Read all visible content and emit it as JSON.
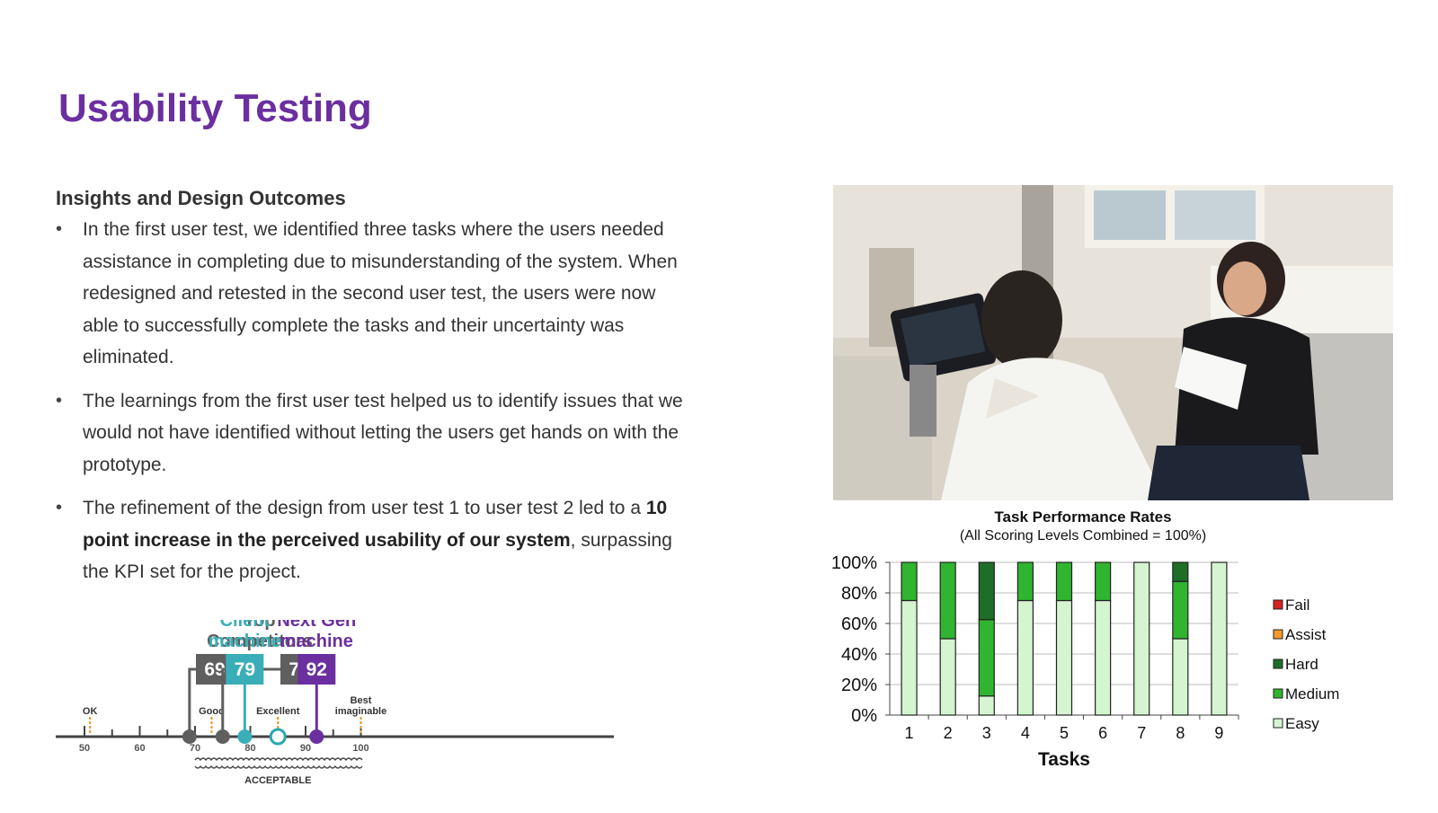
{
  "page": {
    "title": "Usability Testing"
  },
  "insights": {
    "heading": "Insights and Design Outcomes",
    "bullets": [
      {
        "text": "In the first user test, we identified three tasks where the users needed assistance in completing due to misunderstanding of the system. When redesigned and retested in the second user test, the users were now able to successfully complete the tasks and their uncertainty was eliminated."
      },
      {
        "text": "The learnings from the first user test helped us to identify issues that we would not have identified without letting the users get hands on with the prototype."
      },
      {
        "pre": "The refinement of the design from user test 1 to user test 2 led to a ",
        "bold": "10 point increase in the perceived usability of our system",
        "post": ", surpassing the KPI set for the project."
      }
    ]
  },
  "sus_scale": {
    "markers": [
      {
        "label_line1": "Top",
        "label_line2": "Competitors",
        "score": "69",
        "color": "#5f5f5f",
        "value": 69
      },
      {
        "label_line1": "",
        "label_line2": "",
        "score": "75",
        "color": "#5f5f5f",
        "value": 75
      },
      {
        "label_line1": "Client",
        "label_line2": "machine",
        "score": "79",
        "color": "#3aaeb8",
        "value": 79
      },
      {
        "label_line1": "Next Gen",
        "label_line2": "machine",
        "score": "92",
        "color": "#6b2fa0",
        "value": 92
      }
    ],
    "ticks": [
      "50",
      "60",
      "70",
      "80",
      "90",
      "100"
    ],
    "adjectives": [
      {
        "text": "OK",
        "value": 51
      },
      {
        "text": "Good",
        "value": 73
      },
      {
        "text": "Excellent",
        "value": 85
      },
      {
        "text": "Best imaginable",
        "value": 100
      }
    ],
    "acceptable_label": "ACCEPTABLE"
  },
  "chart_data": {
    "type": "bar",
    "stacked": true,
    "title": "Task Performance Rates",
    "subtitle": "(All Scoring Levels Combined = 100%)",
    "xlabel": "Tasks",
    "ylabel": "",
    "categories": [
      "1",
      "2",
      "3",
      "4",
      "5",
      "6",
      "7",
      "8",
      "9"
    ],
    "yticks": [
      "0%",
      "20%",
      "40%",
      "60%",
      "80%",
      "100%"
    ],
    "ylim": [
      0,
      100
    ],
    "grid": true,
    "legend_position": "right",
    "series": [
      {
        "name": "Easy",
        "color": "#d4f5d0",
        "values": [
          75,
          50,
          12.5,
          75,
          75,
          75,
          100,
          50,
          100
        ]
      },
      {
        "name": "Medium",
        "color": "#2fb52f",
        "values": [
          25,
          50,
          50,
          25,
          25,
          25,
          0,
          37.5,
          0
        ]
      },
      {
        "name": "Hard",
        "color": "#1f6e27",
        "values": [
          0,
          0,
          37.5,
          0,
          0,
          0,
          0,
          12.5,
          0
        ]
      },
      {
        "name": "Assist",
        "color": "#f29b2a",
        "values": [
          0,
          0,
          0,
          0,
          0,
          0,
          0,
          0,
          0
        ]
      },
      {
        "name": "Fail",
        "color": "#d92121",
        "values": [
          0,
          0,
          0,
          0,
          0,
          0,
          0,
          0,
          0
        ]
      }
    ],
    "legend_order": [
      "Fail",
      "Assist",
      "Hard",
      "Medium",
      "Easy"
    ]
  }
}
